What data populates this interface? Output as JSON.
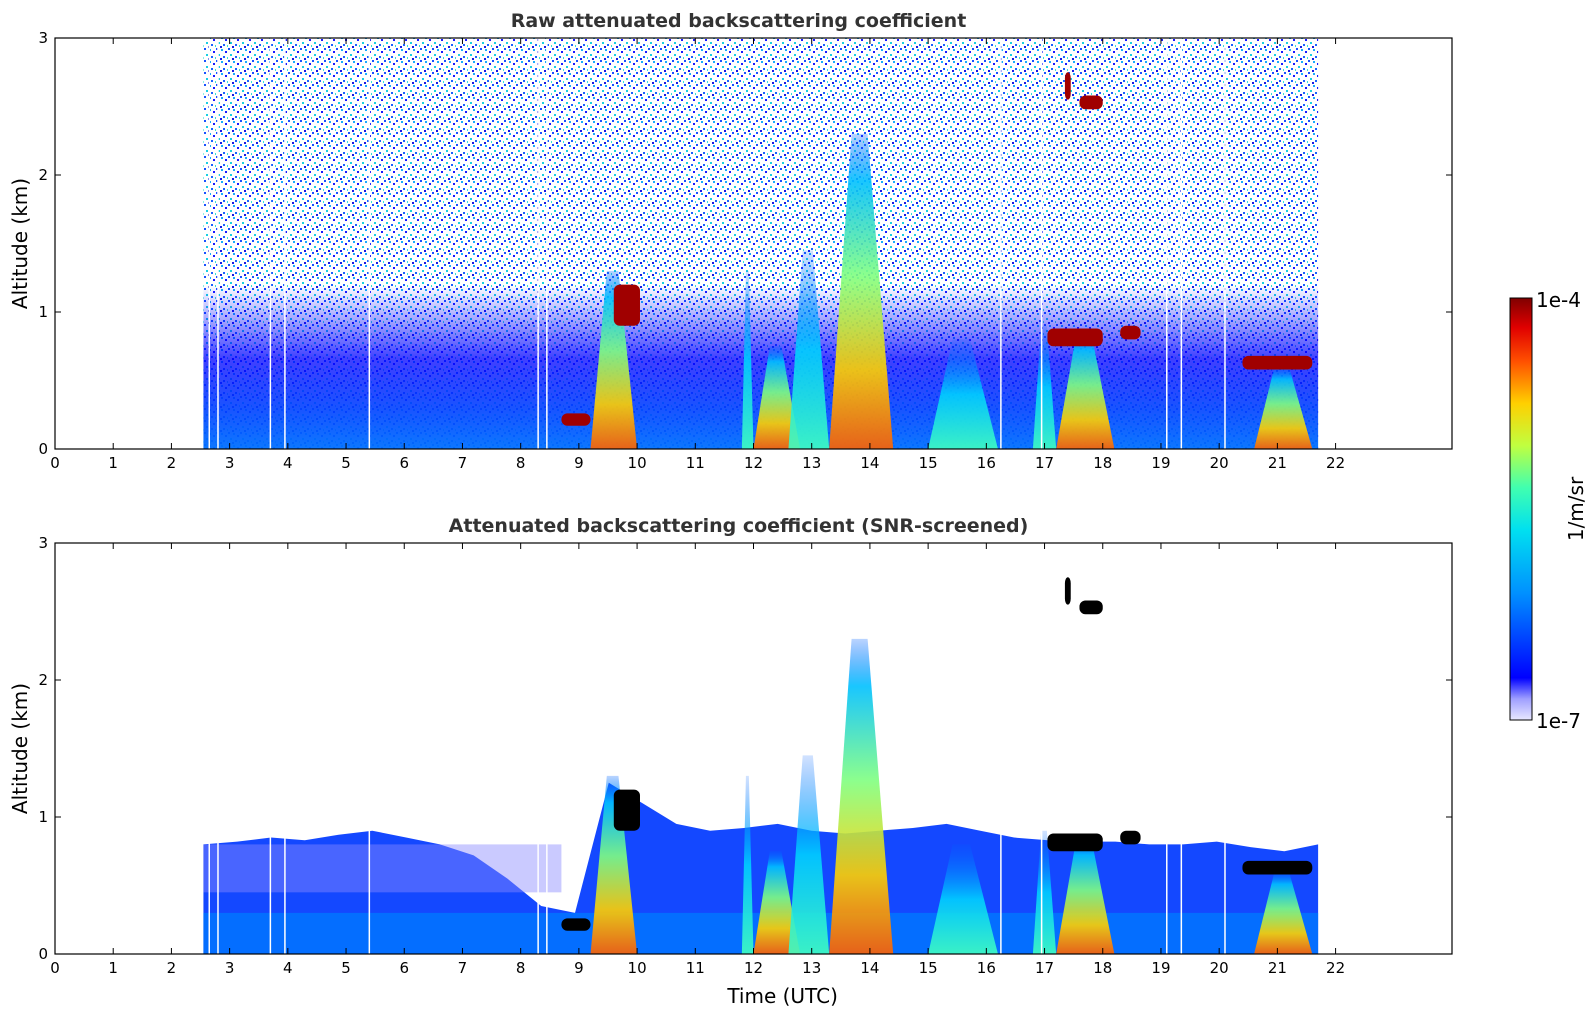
{
  "chart_data": [
    {
      "type": "heatmap",
      "title": "Raw attenuated backscattering coefficient",
      "xlabel": "",
      "ylabel": "Altitude (km)",
      "xlim": [
        0,
        24
      ],
      "ylim": [
        0,
        3
      ],
      "x_ticks": [
        0,
        1,
        2,
        3,
        4,
        5,
        6,
        7,
        8,
        9,
        10,
        11,
        12,
        13,
        14,
        15,
        16,
        17,
        18,
        19,
        20,
        21,
        22
      ],
      "y_ticks": [
        0,
        1,
        2,
        3
      ],
      "data_time_range": [
        2.55,
        21.7
      ],
      "screened": false,
      "features": [
        {
          "label": "boundary layer aerosol",
          "x": [
            2.55,
            21.7
          ],
          "y": [
            0,
            0.7
          ]
        },
        {
          "label": "cloud",
          "x": [
            8.7,
            9.2
          ],
          "y": [
            0.2,
            0.25
          ],
          "level": "high"
        },
        {
          "label": "cloud",
          "x": [
            9.6,
            10.0
          ],
          "y": [
            0.9,
            1.2
          ],
          "level": "high"
        },
        {
          "label": "convective plume",
          "x": [
            9.2,
            10.0
          ],
          "y": [
            0,
            1.3
          ]
        },
        {
          "label": "convective plume",
          "x": [
            13.3,
            14.4
          ],
          "y": [
            0,
            2.3
          ]
        },
        {
          "label": "cloud",
          "x": [
            17.0,
            18.0
          ],
          "y": [
            0.75,
            0.9
          ],
          "level": "high"
        },
        {
          "label": "cloud",
          "x": [
            18.3,
            18.6
          ],
          "y": [
            0.8,
            0.9
          ],
          "level": "high"
        },
        {
          "label": "cloud",
          "x": [
            17.3,
            18.0
          ],
          "y": [
            2.5,
            2.9
          ],
          "level": "high"
        },
        {
          "label": "cloud",
          "x": [
            20.4,
            21.6
          ],
          "y": [
            0.6,
            0.7
          ],
          "level": "high"
        }
      ]
    },
    {
      "type": "heatmap",
      "title": "Attenuated backscattering coefficient (SNR-screened)",
      "xlabel": "Time (UTC)",
      "ylabel": "Altitude (km)",
      "xlim": [
        0,
        24
      ],
      "ylim": [
        0,
        3
      ],
      "x_ticks": [
        0,
        1,
        2,
        3,
        4,
        5,
        6,
        7,
        8,
        9,
        10,
        11,
        12,
        13,
        14,
        15,
        16,
        17,
        18,
        19,
        20,
        21,
        22
      ],
      "y_ticks": [
        0,
        1,
        2,
        3
      ],
      "data_time_range": [
        2.55,
        21.7
      ],
      "screened": true
    }
  ],
  "colorbar": {
    "label": "1/m/sr",
    "min_label": "1e-7",
    "max_label": "1e-4",
    "scale": "log",
    "range": [
      1e-07,
      0.0001
    ],
    "colormap": "jet",
    "saturated_color": "#000000"
  },
  "colors": {
    "background": "#ffffff",
    "title": "#333333"
  }
}
